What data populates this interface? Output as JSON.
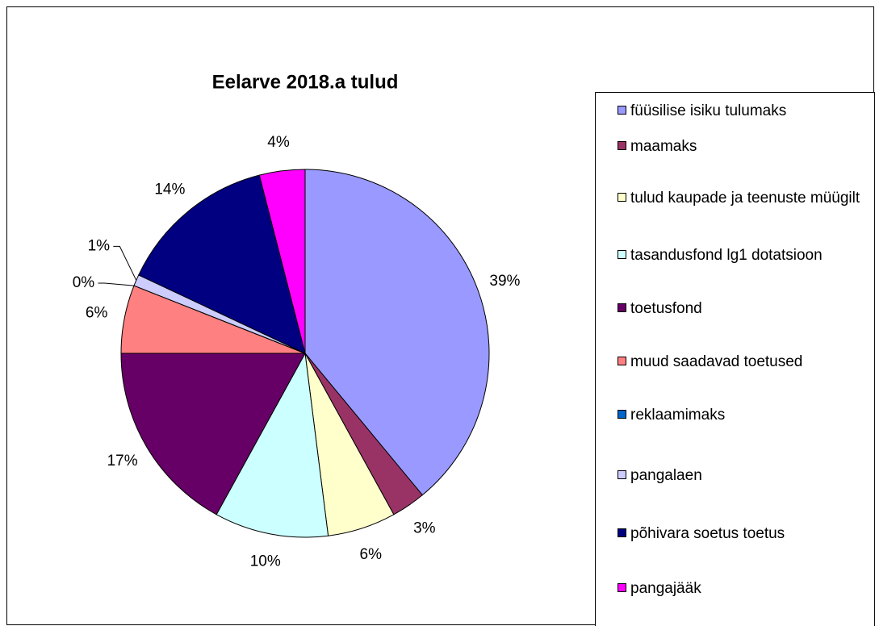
{
  "chart_data": {
    "type": "pie",
    "title": "Eelarve 2018.a tulud",
    "categories": [
      "füüsilise isiku tulumaks",
      "maamaks",
      "tulud kaupade ja teenuste müügilt",
      "tasandusfond lg1 dotatsioon",
      "toetusfond",
      "muud saadavad toetused",
      "reklaamimaks",
      "pangalaen",
      "põhivara soetus toetus",
      "pangajääk"
    ],
    "values": [
      39,
      3,
      6,
      10,
      17,
      6,
      0,
      1,
      14,
      4
    ],
    "value_labels": [
      "39%",
      "3%",
      "6%",
      "10%",
      "17%",
      "6%",
      "0%",
      "1%",
      "14%",
      "4%"
    ],
    "colors": [
      "#9999ff",
      "#993366",
      "#ffffcc",
      "#ccffff",
      "#660066",
      "#ff8080",
      "#0066cc",
      "#ccccff",
      "#000080",
      "#ff00ff"
    ],
    "legend": "right"
  }
}
